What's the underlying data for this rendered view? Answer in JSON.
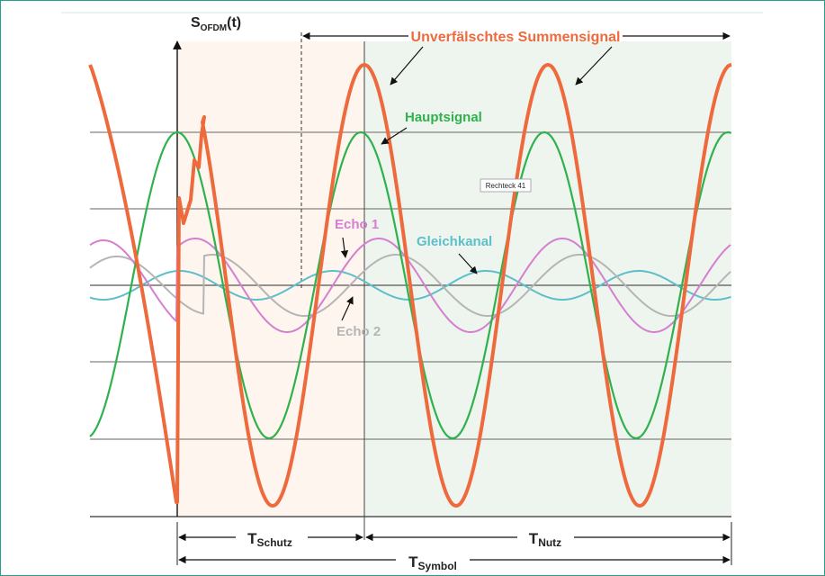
{
  "axis": {
    "y_label_main": "S",
    "y_label_sub": "OFDM",
    "y_label_tail": "(t)"
  },
  "annotations": {
    "summensignal": "Unverfälschtes Summensignal",
    "hauptsignal": "Hauptsignal",
    "echo1": "Echo 1",
    "echo2": "Echo 2",
    "gleichkanal": "Gleichkanal",
    "rechteck": "Rechteck 41"
  },
  "intervals": {
    "schutz_main": "T",
    "schutz_sub": "Schutz",
    "nutz_main": "T",
    "nutz_sub": "Nutz",
    "symbol_main": "T",
    "symbol_sub": "Symbol"
  },
  "colors": {
    "sum": "#ee6a3c",
    "main": "#2fb14c",
    "echo1": "#d47fcf",
    "echo2": "#b5b5b5",
    "gleichkanal": "#5cbfc9",
    "guard_bg": "#fdf5ee",
    "useful_bg": "#eef4ee",
    "grid": "#555555"
  }
}
